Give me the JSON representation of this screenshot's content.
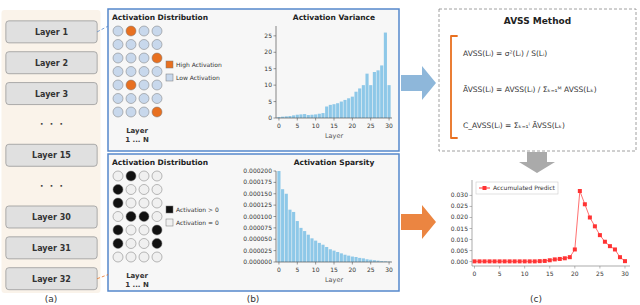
{
  "chart_data": [
    {
      "type": "caption",
      "annotations": [
        "(a)",
        "(b)",
        "(c)"
      ]
    },
    {
      "type": "layer_list",
      "annotations": [
        "Layer 1",
        "Layer 2",
        "Layer 3",
        "⋅  ⋅  ⋅",
        "Layer 15",
        "⋅  ⋅  ⋅",
        "Layer 30",
        "Layer 31",
        "Layer 32"
      ],
      "color": "#e0e0e0"
    },
    {
      "type": "dot_grid",
      "title": "Activation Distribution",
      "series": [
        {
          "name": "High Activation",
          "color": "#e87020"
        },
        {
          "name": "Low Activation",
          "color": "#c8d8ec"
        }
      ],
      "cells": [
        [
          1,
          0,
          1,
          1
        ],
        [
          1,
          1,
          1,
          1
        ],
        [
          1,
          1,
          1,
          0
        ],
        [
          1,
          1,
          1,
          1
        ],
        [
          1,
          0,
          1,
          1
        ],
        [
          1,
          1,
          1,
          1
        ],
        [
          1,
          1,
          1,
          0
        ]
      ],
      "annotations": [
        "Layer",
        "1 ... N"
      ]
    },
    {
      "type": "bar",
      "title": "Activation Variance",
      "x_label": "Layer",
      "values": [
        0.3,
        0.4,
        0.5,
        0.6,
        0.8,
        1.0,
        1.1,
        1.2,
        0.9,
        1.0,
        1.1,
        1.3,
        1.5,
        3.5,
        4.0,
        4.2,
        4.5,
        5.0,
        5.5,
        6.0,
        6.5,
        8.0,
        9.0,
        10.0,
        13.5,
        10.0,
        14.0,
        14.5,
        16.0,
        26.0,
        10.0
      ],
      "color": "#8ec8e8",
      "xlim": [
        -0.8,
        30.8
      ],
      "xticks": [
        0,
        5,
        10,
        15,
        20,
        25,
        30
      ],
      "ylim": [
        0,
        28
      ],
      "yticks": [
        0,
        5,
        10,
        15,
        20,
        25
      ]
    },
    {
      "type": "dot_grid",
      "title": "Activation Distribution",
      "series": [
        {
          "name": "Activation > 0",
          "color": "#111111"
        },
        {
          "name": "Activation = 0",
          "color": "#f0f0f0"
        }
      ],
      "cells": [
        [
          1,
          0,
          1,
          1
        ],
        [
          0,
          1,
          1,
          1
        ],
        [
          0,
          1,
          1,
          1
        ],
        [
          1,
          0,
          0,
          1
        ],
        [
          0,
          1,
          1,
          0
        ],
        [
          0,
          1,
          1,
          0
        ],
        [
          1,
          1,
          1,
          1
        ]
      ],
      "annotations": [
        "Layer",
        "1 ... N"
      ]
    },
    {
      "type": "bar",
      "title": "Activation Sparsity",
      "x_label": "Layer",
      "values": [
        0.0002,
        0.00016,
        0.00015,
        0.000115,
        0.00011,
        9e-05,
        7.5e-05,
        6.8e-05,
        6e-05,
        5.2e-05,
        4.7e-05,
        4.2e-05,
        3.8e-05,
        3.3e-05,
        2.8e-05,
        2.5e-05,
        2.2e-05,
        1.9e-05,
        1.6e-05,
        1.4e-05,
        1.2e-05,
        1.1e-05,
        9e-06,
        8e-06,
        6e-06,
        5e-06,
        4e-06,
        3e-06,
        2e-06,
        1.5e-06,
        1e-06
      ],
      "color": "#8ec8e8",
      "xlim": [
        -0.8,
        30.8
      ],
      "xticks": [
        0,
        5,
        10,
        15,
        20,
        25,
        30
      ],
      "ylim": [
        0,
        0.0002
      ],
      "yticks": [
        {
          "value": 0,
          "label": "0.000000"
        },
        {
          "value": 2.5e-05,
          "label": "0.000025"
        },
        {
          "value": 5e-05,
          "label": "0.000050"
        },
        {
          "value": 7.5e-05,
          "label": "0.000075"
        },
        {
          "value": 0.0001,
          "label": "0.000100"
        },
        {
          "value": 0.000125,
          "label": "0.000125"
        },
        {
          "value": 0.00015,
          "label": "0.000150"
        },
        {
          "value": 0.000175,
          "label": "0.000175"
        },
        {
          "value": 0.0002,
          "label": "0.000200"
        }
      ]
    },
    {
      "type": "formula",
      "title": "AVSS Method",
      "color": "#e87020",
      "annotations": [
        "AVSS(Lᵢ) = σ²(Lᵢ) / S(Lᵢ)",
        "ÃVSS(Lᵢ) = AVSS(Lᵢ) / Σₖ₌₁ᴹ AVSS(Lₖ)",
        "C_AVSS(Lᵢ) = Σₖ₌₁ⁱ ÃVSS(Lₖ)"
      ]
    },
    {
      "type": "line",
      "series": [
        {
          "name": "Accumulated Predict",
          "color": "#ff3333",
          "marker": "square",
          "values": [
            0.0001,
            0.0001,
            0.0001,
            0.0001,
            0.0001,
            0.0001,
            0.0001,
            0.0001,
            0.0001,
            0.0001,
            0.0001,
            0.0001,
            0.0001,
            0.0002,
            0.0003,
            0.0006,
            0.001,
            0.0012,
            0.0015,
            0.002,
            0.0055,
            0.032,
            0.026,
            0.02,
            0.016,
            0.012,
            0.009,
            0.007,
            0.0055,
            0.002,
            0.0002
          ]
        }
      ],
      "xlim": [
        -0.5,
        31
      ],
      "xticks": [
        0,
        5,
        10,
        15,
        20,
        25,
        30
      ],
      "ylim": [
        -0.002,
        0.037
      ],
      "yticks": [
        {
          "value": 0,
          "label": "0.000"
        },
        0.005,
        {
          "value": 0.01,
          "label": "0.010"
        },
        0.015,
        {
          "value": 0.02,
          "label": "0.020"
        },
        0.025,
        {
          "value": 0.03,
          "label": "0.030"
        }
      ],
      "legend": "upper left"
    }
  ]
}
